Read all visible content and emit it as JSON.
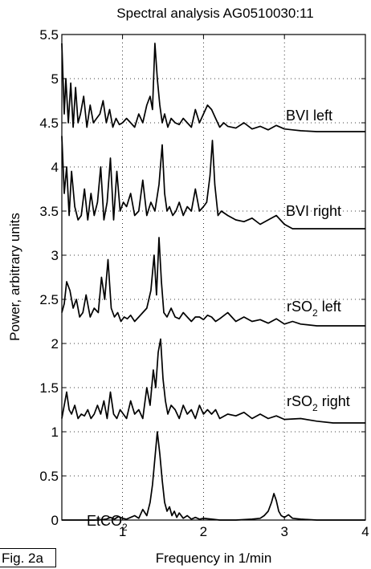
{
  "chart_data": {
    "type": "line",
    "title": "Spectral analysis AG0510030:11",
    "xlabel": "Frequency in 1/min",
    "ylabel": "Power, arbitrary units",
    "xlim": [
      0.25,
      4
    ],
    "ylim": [
      0,
      5.5
    ],
    "xticks": [
      1,
      2,
      3,
      4
    ],
    "xtick_labels": [
      "1",
      "2",
      "3",
      "4"
    ],
    "yticks": [
      0,
      0.5,
      1,
      1.5,
      2,
      2.5,
      3,
      3.5,
      4,
      4.5,
      5,
      5.5
    ],
    "ytick_labels": [
      "0",
      "0.5",
      "1",
      "1.5",
      "2",
      "2.5",
      "3",
      "3.5",
      "4",
      "4.5",
      "5",
      "5.5"
    ],
    "grid": true,
    "annotations": [
      {
        "base": "BVI left",
        "sub": "",
        "suffix": ""
      },
      {
        "base": "BVI right",
        "sub": "",
        "suffix": ""
      },
      {
        "base": "rSO",
        "sub": "2",
        "suffix": " left"
      },
      {
        "base": "rSO",
        "sub": "2",
        "suffix": " right"
      },
      {
        "base": "EtCO",
        "sub": "2",
        "suffix": ""
      }
    ],
    "figure_label": "Fig. 2a",
    "series": [
      {
        "baseline": 4.4,
        "x": [
          0.25,
          0.28,
          0.3,
          0.33,
          0.36,
          0.39,
          0.42,
          0.45,
          0.48,
          0.52,
          0.56,
          0.6,
          0.64,
          0.68,
          0.72,
          0.76,
          0.8,
          0.84,
          0.88,
          0.92,
          0.96,
          1.0,
          1.05,
          1.1,
          1.15,
          1.2,
          1.25,
          1.3,
          1.34,
          1.37,
          1.4,
          1.43,
          1.46,
          1.49,
          1.52,
          1.56,
          1.6,
          1.65,
          1.7,
          1.75,
          1.8,
          1.85,
          1.9,
          1.95,
          2.0,
          2.05,
          2.1,
          2.15,
          2.2,
          2.25,
          2.3,
          2.4,
          2.5,
          2.6,
          2.7,
          2.8,
          2.9,
          3.0,
          3.1,
          3.2,
          3.4,
          3.6,
          4.0
        ],
        "y": [
          5.4,
          4.6,
          5.0,
          4.5,
          4.95,
          4.45,
          4.9,
          4.5,
          4.6,
          4.8,
          4.45,
          4.7,
          4.5,
          4.55,
          4.6,
          4.75,
          4.5,
          4.65,
          4.45,
          4.55,
          4.48,
          4.5,
          4.55,
          4.5,
          4.45,
          4.6,
          4.5,
          4.7,
          4.8,
          4.65,
          5.4,
          5.0,
          4.7,
          4.5,
          4.6,
          4.45,
          4.55,
          4.5,
          4.48,
          4.55,
          4.5,
          4.45,
          4.65,
          4.5,
          4.6,
          4.7,
          4.65,
          4.55,
          4.45,
          4.5,
          4.46,
          4.44,
          4.5,
          4.43,
          4.46,
          4.42,
          4.47,
          4.43,
          4.42,
          4.41,
          4.4,
          4.4,
          4.4
        ]
      },
      {
        "baseline": 3.3,
        "x": [
          0.25,
          0.28,
          0.31,
          0.34,
          0.37,
          0.41,
          0.45,
          0.49,
          0.53,
          0.57,
          0.61,
          0.65,
          0.69,
          0.73,
          0.77,
          0.81,
          0.85,
          0.89,
          0.93,
          0.97,
          1.01,
          1.05,
          1.1,
          1.15,
          1.2,
          1.25,
          1.3,
          1.35,
          1.4,
          1.45,
          1.49,
          1.52,
          1.55,
          1.58,
          1.62,
          1.66,
          1.7,
          1.75,
          1.8,
          1.85,
          1.9,
          1.95,
          2.0,
          2.04,
          2.08,
          2.11,
          2.14,
          2.18,
          2.22,
          2.3,
          2.4,
          2.5,
          2.6,
          2.7,
          2.8,
          2.9,
          3.0,
          3.1,
          3.3,
          3.6,
          4.0
        ],
        "y": [
          4.35,
          3.7,
          4.0,
          3.45,
          3.95,
          3.55,
          3.4,
          3.45,
          3.75,
          3.4,
          3.7,
          3.45,
          3.6,
          4.0,
          3.4,
          3.6,
          4.1,
          3.4,
          3.95,
          3.5,
          3.6,
          3.55,
          3.7,
          3.45,
          3.5,
          3.85,
          3.45,
          3.6,
          3.5,
          3.8,
          4.25,
          3.7,
          3.5,
          3.55,
          3.45,
          3.5,
          3.6,
          3.45,
          3.55,
          3.5,
          3.75,
          3.5,
          3.55,
          3.6,
          3.9,
          4.3,
          3.8,
          3.45,
          3.5,
          3.45,
          3.4,
          3.38,
          3.42,
          3.35,
          3.4,
          3.45,
          3.35,
          3.3,
          3.3,
          3.3,
          3.3
        ]
      },
      {
        "baseline": 2.2,
        "x": [
          0.25,
          0.28,
          0.31,
          0.35,
          0.39,
          0.43,
          0.47,
          0.51,
          0.55,
          0.6,
          0.65,
          0.7,
          0.74,
          0.78,
          0.82,
          0.86,
          0.9,
          0.94,
          0.98,
          1.02,
          1.06,
          1.1,
          1.15,
          1.2,
          1.25,
          1.3,
          1.35,
          1.39,
          1.42,
          1.45,
          1.48,
          1.51,
          1.55,
          1.6,
          1.65,
          1.7,
          1.75,
          1.8,
          1.85,
          1.9,
          1.95,
          2.0,
          2.05,
          2.1,
          2.15,
          2.2,
          2.3,
          2.4,
          2.5,
          2.6,
          2.7,
          2.8,
          2.9,
          3.0,
          3.1,
          3.2,
          3.4,
          3.6,
          4.0
        ],
        "y": [
          2.35,
          2.45,
          2.7,
          2.6,
          2.4,
          2.5,
          2.3,
          2.35,
          2.55,
          2.3,
          2.4,
          2.35,
          2.75,
          2.5,
          2.95,
          2.4,
          2.3,
          2.35,
          2.25,
          2.3,
          2.28,
          2.32,
          2.25,
          2.3,
          2.35,
          2.4,
          2.6,
          3.0,
          2.55,
          3.2,
          2.7,
          2.35,
          2.3,
          2.4,
          2.3,
          2.28,
          2.35,
          2.3,
          2.25,
          2.3,
          2.3,
          2.27,
          2.32,
          2.3,
          2.25,
          2.28,
          2.35,
          2.25,
          2.3,
          2.25,
          2.27,
          2.23,
          2.28,
          2.22,
          2.25,
          2.22,
          2.2,
          2.2,
          2.2
        ]
      },
      {
        "baseline": 1.1,
        "x": [
          0.25,
          0.28,
          0.31,
          0.34,
          0.37,
          0.41,
          0.45,
          0.49,
          0.53,
          0.57,
          0.61,
          0.65,
          0.69,
          0.73,
          0.77,
          0.81,
          0.85,
          0.89,
          0.93,
          0.97,
          1.01,
          1.05,
          1.1,
          1.15,
          1.2,
          1.25,
          1.3,
          1.34,
          1.38,
          1.41,
          1.44,
          1.47,
          1.5,
          1.53,
          1.56,
          1.6,
          1.65,
          1.7,
          1.75,
          1.8,
          1.85,
          1.9,
          1.95,
          2.0,
          2.05,
          2.1,
          2.15,
          2.2,
          2.3,
          2.4,
          2.5,
          2.6,
          2.7,
          2.8,
          2.9,
          3.0,
          3.2,
          3.4,
          3.6,
          4.0
        ],
        "y": [
          1.15,
          1.3,
          1.45,
          1.25,
          1.2,
          1.3,
          1.15,
          1.2,
          1.18,
          1.25,
          1.15,
          1.2,
          1.3,
          1.2,
          1.35,
          1.15,
          1.45,
          1.2,
          1.15,
          1.25,
          1.2,
          1.15,
          1.35,
          1.2,
          1.25,
          1.15,
          1.5,
          1.3,
          1.7,
          1.5,
          1.9,
          2.05,
          1.6,
          1.35,
          1.2,
          1.3,
          1.25,
          1.15,
          1.3,
          1.2,
          1.25,
          1.15,
          1.3,
          1.2,
          1.25,
          1.2,
          1.25,
          1.15,
          1.2,
          1.18,
          1.22,
          1.15,
          1.2,
          1.15,
          1.18,
          1.14,
          1.15,
          1.12,
          1.1,
          1.1
        ]
      },
      {
        "baseline": 0,
        "x": [
          0.25,
          0.5,
          0.7,
          0.8,
          0.85,
          0.9,
          0.95,
          1.0,
          1.05,
          1.1,
          1.15,
          1.2,
          1.25,
          1.3,
          1.34,
          1.37,
          1.4,
          1.43,
          1.46,
          1.49,
          1.52,
          1.55,
          1.58,
          1.61,
          1.64,
          1.67,
          1.7,
          1.75,
          1.8,
          1.85,
          1.9,
          1.95,
          2.0,
          2.1,
          2.2,
          2.4,
          2.6,
          2.7,
          2.75,
          2.8,
          2.84,
          2.87,
          2.9,
          2.93,
          2.96,
          3.0,
          3.05,
          3.1,
          3.2,
          3.4,
          4.0
        ],
        "y": [
          0,
          0,
          0,
          0.01,
          0.03,
          0.01,
          0.04,
          0.02,
          0.01,
          0.03,
          0.05,
          0.02,
          0.12,
          0.05,
          0.2,
          0.4,
          0.7,
          1.0,
          0.75,
          0.45,
          0.2,
          0.1,
          0.15,
          0.05,
          0.1,
          0.03,
          0.08,
          0.02,
          0.05,
          0.01,
          0.03,
          0.01,
          0.02,
          0.01,
          0,
          0,
          0.01,
          0.02,
          0.05,
          0.1,
          0.2,
          0.3,
          0.22,
          0.1,
          0.05,
          0.03,
          0.06,
          0.02,
          0.01,
          0,
          0
        ]
      }
    ]
  }
}
